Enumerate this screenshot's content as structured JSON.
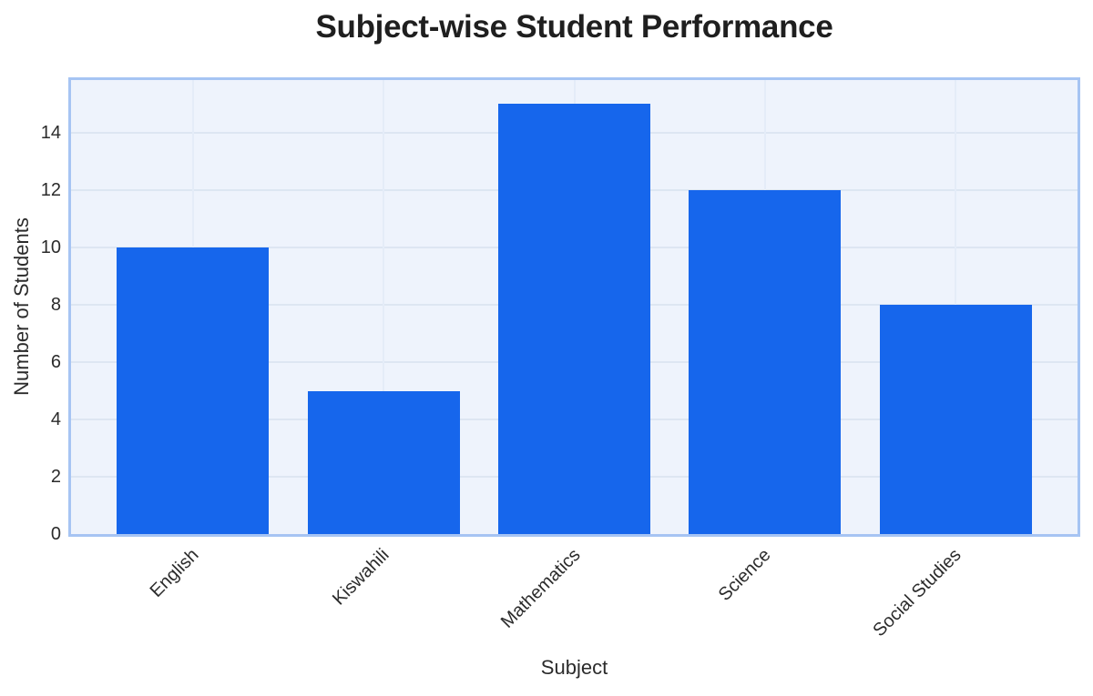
{
  "page": {
    "background": "#ffffff"
  },
  "chart_data": {
    "type": "bar",
    "title": "Subject-wise Student Performance",
    "xlabel": "Subject",
    "ylabel": "Number of Students",
    "categories": [
      "English",
      "Kiswahili",
      "Mathematics",
      "Science",
      "Social Studies"
    ],
    "values": [
      10,
      5,
      15,
      12,
      8
    ],
    "yticks": [
      0,
      2,
      4,
      6,
      8,
      10,
      12,
      14
    ],
    "ylim": [
      0,
      15.84
    ],
    "grid": true,
    "legend": false,
    "colors": {
      "bar": "#1666ec",
      "plot_background": "#eef3fc",
      "plot_border": "#a6c4f3",
      "gridline_h": "#dde6f2",
      "gridline_v": "#e4ecf8",
      "title_text": "#1f1f1f",
      "axis_text": "#2b2b2b"
    }
  }
}
